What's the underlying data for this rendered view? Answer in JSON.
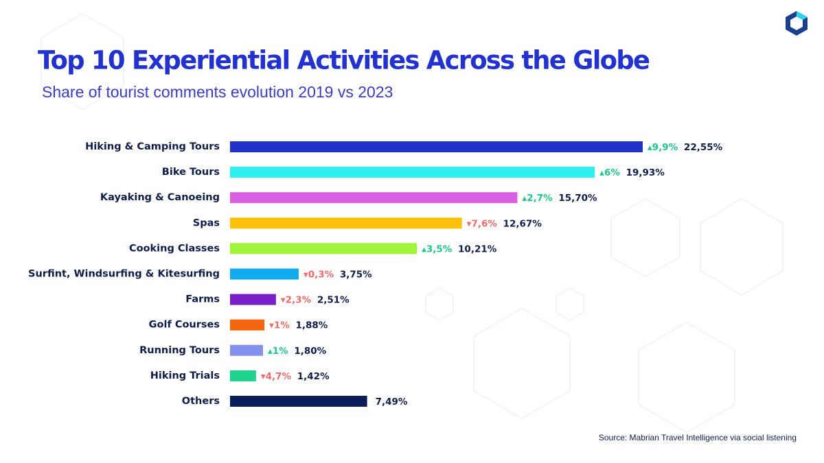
{
  "chart_data": {
    "type": "bar",
    "orientation": "horizontal",
    "title": "Top 10 Experiential Activities Across the Globe",
    "subtitle": "Share of tourist comments evolution 2019 vs 2023",
    "categories": [
      "Hiking & Camping Tours",
      "Bike Tours",
      "Kayaking & Canoeing",
      "Spas",
      "Cooking Classes",
      "Surfint, Windsurfing & Kitesurfing",
      "Farms",
      "Golf Courses",
      "Running Tours",
      "Hiking Trials",
      "Others"
    ],
    "values": [
      22.55,
      19.93,
      15.7,
      12.67,
      10.21,
      3.75,
      2.51,
      1.88,
      1.8,
      1.42,
      7.49
    ],
    "value_labels": [
      "22,55%",
      "19,93%",
      "15,70%",
      "12,67%",
      "10,21%",
      "3,75%",
      "2,51%",
      "1,88%",
      "1,80%",
      "1,42%",
      "7,49%"
    ],
    "colors": [
      "#2233c8",
      "#2ef0f0",
      "#d95fe3",
      "#ffc107",
      "#9ef53a",
      "#12aaf0",
      "#7b1fc9",
      "#f4650f",
      "#8390ee",
      "#1fd28e",
      "#0b1e5b"
    ],
    "changes": {
      "values": [
        9.9,
        6,
        2.7,
        -7.6,
        3.5,
        -0.3,
        -2.3,
        -1,
        1,
        -4.7,
        null
      ],
      "value_labels": [
        "▴9,9%",
        "▴6%",
        "▴2,7%",
        "▾7,6%",
        "▴3,5%",
        "▾0,3%",
        "▾2,3%",
        "▾1%",
        "▴1%",
        "▾4,7%",
        null
      ],
      "up_color": "#1ec98a",
      "down_color": "#f06a6a"
    },
    "source": "Source: Mabrian Travel Intelligence via social listening"
  }
}
